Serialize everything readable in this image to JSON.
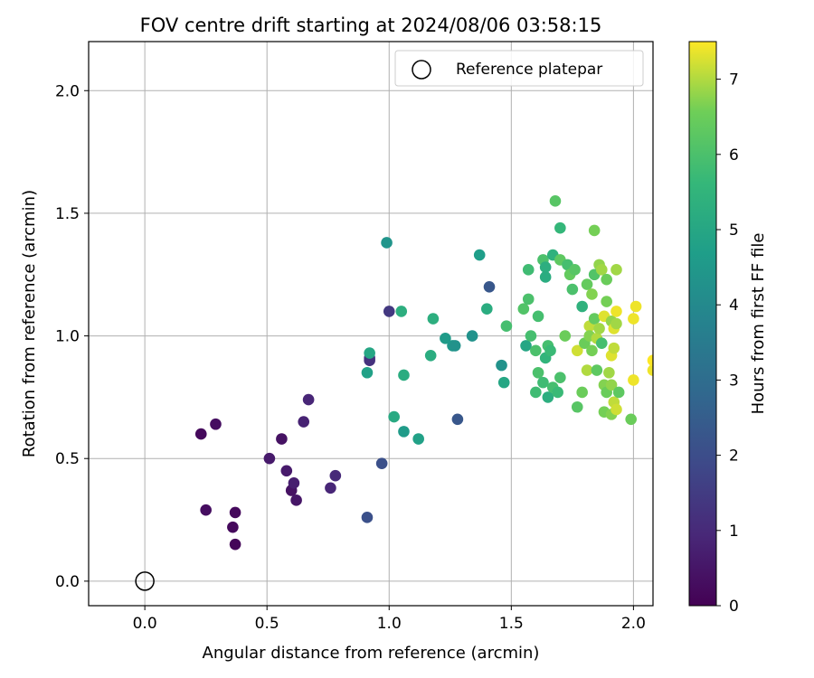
{
  "chart_data": {
    "type": "scatter",
    "title": "FOV centre drift starting at 2024/08/06 03:58:15",
    "xlabel": "Angular distance from reference (arcmin)",
    "ylabel": "Rotation from reference (arcmin)",
    "xlim": [
      -0.23,
      2.08
    ],
    "ylim": [
      -0.1,
      2.2
    ],
    "xticks": [
      "0.0",
      "0.5",
      "1.0",
      "1.5",
      "2.0"
    ],
    "yticks": [
      "0.0",
      "0.5",
      "1.0",
      "1.5",
      "2.0"
    ],
    "grid": true,
    "legend": {
      "placement": "top-right",
      "entries": [
        "Reference platepar"
      ]
    },
    "reference_point": {
      "x": 0.0,
      "y": 0.0
    },
    "colorbar": {
      "label": "Hours from first FF file",
      "range": [
        0,
        7.5
      ],
      "ticks": [
        "0",
        "1",
        "2",
        "3",
        "4",
        "5",
        "6",
        "7"
      ],
      "colormap": "viridis"
    },
    "points": [
      {
        "x": 0.23,
        "y": 0.6,
        "h": 0.2
      },
      {
        "x": 0.29,
        "y": 0.64,
        "h": 0.3
      },
      {
        "x": 0.25,
        "y": 0.29,
        "h": 0.3
      },
      {
        "x": 0.36,
        "y": 0.22,
        "h": 0.2
      },
      {
        "x": 0.37,
        "y": 0.28,
        "h": 0.2
      },
      {
        "x": 0.37,
        "y": 0.15,
        "h": 0.1
      },
      {
        "x": 0.51,
        "y": 0.5,
        "h": 0.6
      },
      {
        "x": 0.56,
        "y": 0.58,
        "h": 0.4
      },
      {
        "x": 0.58,
        "y": 0.45,
        "h": 0.6
      },
      {
        "x": 0.6,
        "y": 0.37,
        "h": 0.4
      },
      {
        "x": 0.61,
        "y": 0.4,
        "h": 0.7
      },
      {
        "x": 0.62,
        "y": 0.33,
        "h": 0.5
      },
      {
        "x": 0.65,
        "y": 0.65,
        "h": 0.8
      },
      {
        "x": 0.67,
        "y": 0.74,
        "h": 0.9
      },
      {
        "x": 0.76,
        "y": 0.38,
        "h": 0.9
      },
      {
        "x": 0.78,
        "y": 0.43,
        "h": 1.0
      },
      {
        "x": 0.91,
        "y": 0.26,
        "h": 2.1
      },
      {
        "x": 0.92,
        "y": 0.91,
        "h": 1.3
      },
      {
        "x": 0.92,
        "y": 0.9,
        "h": 1.2
      },
      {
        "x": 0.97,
        "y": 0.48,
        "h": 2.1
      },
      {
        "x": 1.0,
        "y": 1.1,
        "h": 1.4
      },
      {
        "x": 1.28,
        "y": 0.66,
        "h": 2.3
      },
      {
        "x": 1.41,
        "y": 1.2,
        "h": 2.3
      },
      {
        "x": 0.91,
        "y": 0.85,
        "h": 4.8
      },
      {
        "x": 0.92,
        "y": 0.93,
        "h": 5.0
      },
      {
        "x": 0.99,
        "y": 1.38,
        "h": 4.4
      },
      {
        "x": 1.02,
        "y": 0.67,
        "h": 5.1
      },
      {
        "x": 1.05,
        "y": 1.1,
        "h": 5.3
      },
      {
        "x": 1.06,
        "y": 0.61,
        "h": 4.6
      },
      {
        "x": 1.06,
        "y": 0.84,
        "h": 5.2
      },
      {
        "x": 1.12,
        "y": 0.58,
        "h": 4.8
      },
      {
        "x": 1.17,
        "y": 0.92,
        "h": 5.2
      },
      {
        "x": 1.18,
        "y": 1.07,
        "h": 5.3
      },
      {
        "x": 1.23,
        "y": 0.99,
        "h": 4.6
      },
      {
        "x": 1.26,
        "y": 0.96,
        "h": 4.5
      },
      {
        "x": 1.27,
        "y": 0.96,
        "h": 4.3
      },
      {
        "x": 1.34,
        "y": 1.0,
        "h": 4.3
      },
      {
        "x": 1.37,
        "y": 1.33,
        "h": 4.7
      },
      {
        "x": 1.4,
        "y": 1.11,
        "h": 5.2
      },
      {
        "x": 1.46,
        "y": 0.88,
        "h": 4.3
      },
      {
        "x": 1.47,
        "y": 0.81,
        "h": 5.0
      },
      {
        "x": 1.48,
        "y": 1.04,
        "h": 5.9
      },
      {
        "x": 1.55,
        "y": 1.11,
        "h": 6.1
      },
      {
        "x": 1.56,
        "y": 0.96,
        "h": 5.0
      },
      {
        "x": 1.57,
        "y": 1.27,
        "h": 5.8
      },
      {
        "x": 1.57,
        "y": 1.15,
        "h": 6.0
      },
      {
        "x": 1.58,
        "y": 1.0,
        "h": 5.9
      },
      {
        "x": 1.6,
        "y": 0.94,
        "h": 6.0
      },
      {
        "x": 1.6,
        "y": 0.77,
        "h": 5.8
      },
      {
        "x": 1.61,
        "y": 1.08,
        "h": 5.9
      },
      {
        "x": 1.61,
        "y": 0.85,
        "h": 6.0
      },
      {
        "x": 1.63,
        "y": 1.31,
        "h": 6.0
      },
      {
        "x": 1.63,
        "y": 0.81,
        "h": 5.8
      },
      {
        "x": 1.64,
        "y": 1.28,
        "h": 5.3
      },
      {
        "x": 1.64,
        "y": 1.24,
        "h": 5.2
      },
      {
        "x": 1.64,
        "y": 0.91,
        "h": 5.5
      },
      {
        "x": 1.65,
        "y": 0.96,
        "h": 5.9
      },
      {
        "x": 1.65,
        "y": 0.75,
        "h": 5.3
      },
      {
        "x": 1.66,
        "y": 0.94,
        "h": 5.7
      },
      {
        "x": 1.67,
        "y": 1.33,
        "h": 5.4
      },
      {
        "x": 1.67,
        "y": 0.79,
        "h": 5.9
      },
      {
        "x": 1.68,
        "y": 1.55,
        "h": 6.2
      },
      {
        "x": 1.69,
        "y": 0.77,
        "h": 5.7
      },
      {
        "x": 1.7,
        "y": 1.44,
        "h": 5.6
      },
      {
        "x": 1.7,
        "y": 1.31,
        "h": 6.3
      },
      {
        "x": 1.7,
        "y": 0.83,
        "h": 6.0
      },
      {
        "x": 1.72,
        "y": 1.0,
        "h": 6.5
      },
      {
        "x": 1.73,
        "y": 1.29,
        "h": 5.9
      },
      {
        "x": 1.74,
        "y": 1.25,
        "h": 6.4
      },
      {
        "x": 1.75,
        "y": 1.19,
        "h": 6.0
      },
      {
        "x": 1.76,
        "y": 1.27,
        "h": 6.2
      },
      {
        "x": 1.77,
        "y": 0.94,
        "h": 7.2
      },
      {
        "x": 1.77,
        "y": 0.71,
        "h": 6.2
      },
      {
        "x": 1.79,
        "y": 1.12,
        "h": 5.4
      },
      {
        "x": 1.79,
        "y": 0.77,
        "h": 6.5
      },
      {
        "x": 1.8,
        "y": 0.97,
        "h": 6.5
      },
      {
        "x": 1.81,
        "y": 1.21,
        "h": 6.4
      },
      {
        "x": 1.81,
        "y": 0.86,
        "h": 7.0
      },
      {
        "x": 1.82,
        "y": 1.04,
        "h": 7.1
      },
      {
        "x": 1.82,
        "y": 1.0,
        "h": 6.7
      },
      {
        "x": 1.83,
        "y": 1.17,
        "h": 6.7
      },
      {
        "x": 1.83,
        "y": 0.94,
        "h": 6.6
      },
      {
        "x": 1.84,
        "y": 1.43,
        "h": 6.6
      },
      {
        "x": 1.84,
        "y": 1.25,
        "h": 6.1
      },
      {
        "x": 1.84,
        "y": 1.07,
        "h": 6.4
      },
      {
        "x": 1.85,
        "y": 0.86,
        "h": 6.3
      },
      {
        "x": 1.85,
        "y": 0.99,
        "h": 7.0
      },
      {
        "x": 1.86,
        "y": 1.29,
        "h": 6.8
      },
      {
        "x": 1.86,
        "y": 1.03,
        "h": 6.9
      },
      {
        "x": 1.87,
        "y": 0.97,
        "h": 5.9
      },
      {
        "x": 1.87,
        "y": 1.27,
        "h": 6.9
      },
      {
        "x": 1.88,
        "y": 1.08,
        "h": 7.3
      },
      {
        "x": 1.88,
        "y": 0.8,
        "h": 6.7
      },
      {
        "x": 1.88,
        "y": 0.69,
        "h": 6.6
      },
      {
        "x": 1.89,
        "y": 1.23,
        "h": 6.5
      },
      {
        "x": 1.89,
        "y": 1.14,
        "h": 6.6
      },
      {
        "x": 1.89,
        "y": 0.77,
        "h": 6.5
      },
      {
        "x": 1.9,
        "y": 0.85,
        "h": 6.9
      },
      {
        "x": 1.91,
        "y": 1.06,
        "h": 6.8
      },
      {
        "x": 1.91,
        "y": 0.92,
        "h": 7.3
      },
      {
        "x": 1.91,
        "y": 0.8,
        "h": 6.8
      },
      {
        "x": 1.91,
        "y": 0.68,
        "h": 6.7
      },
      {
        "x": 1.92,
        "y": 1.03,
        "h": 7.3
      },
      {
        "x": 1.92,
        "y": 0.95,
        "h": 7.1
      },
      {
        "x": 1.92,
        "y": 0.73,
        "h": 7.1
      },
      {
        "x": 1.93,
        "y": 1.27,
        "h": 6.9
      },
      {
        "x": 1.93,
        "y": 1.1,
        "h": 7.4
      },
      {
        "x": 1.93,
        "y": 1.05,
        "h": 6.9
      },
      {
        "x": 1.93,
        "y": 0.7,
        "h": 7.2
      },
      {
        "x": 1.94,
        "y": 0.77,
        "h": 6.3
      },
      {
        "x": 1.99,
        "y": 0.66,
        "h": 6.5
      },
      {
        "x": 2.0,
        "y": 1.07,
        "h": 7.4
      },
      {
        "x": 2.0,
        "y": 0.82,
        "h": 7.4
      },
      {
        "x": 2.01,
        "y": 1.12,
        "h": 7.4
      },
      {
        "x": 2.08,
        "y": 0.86,
        "h": 7.4
      },
      {
        "x": 2.08,
        "y": 0.9,
        "h": 7.5
      }
    ]
  }
}
